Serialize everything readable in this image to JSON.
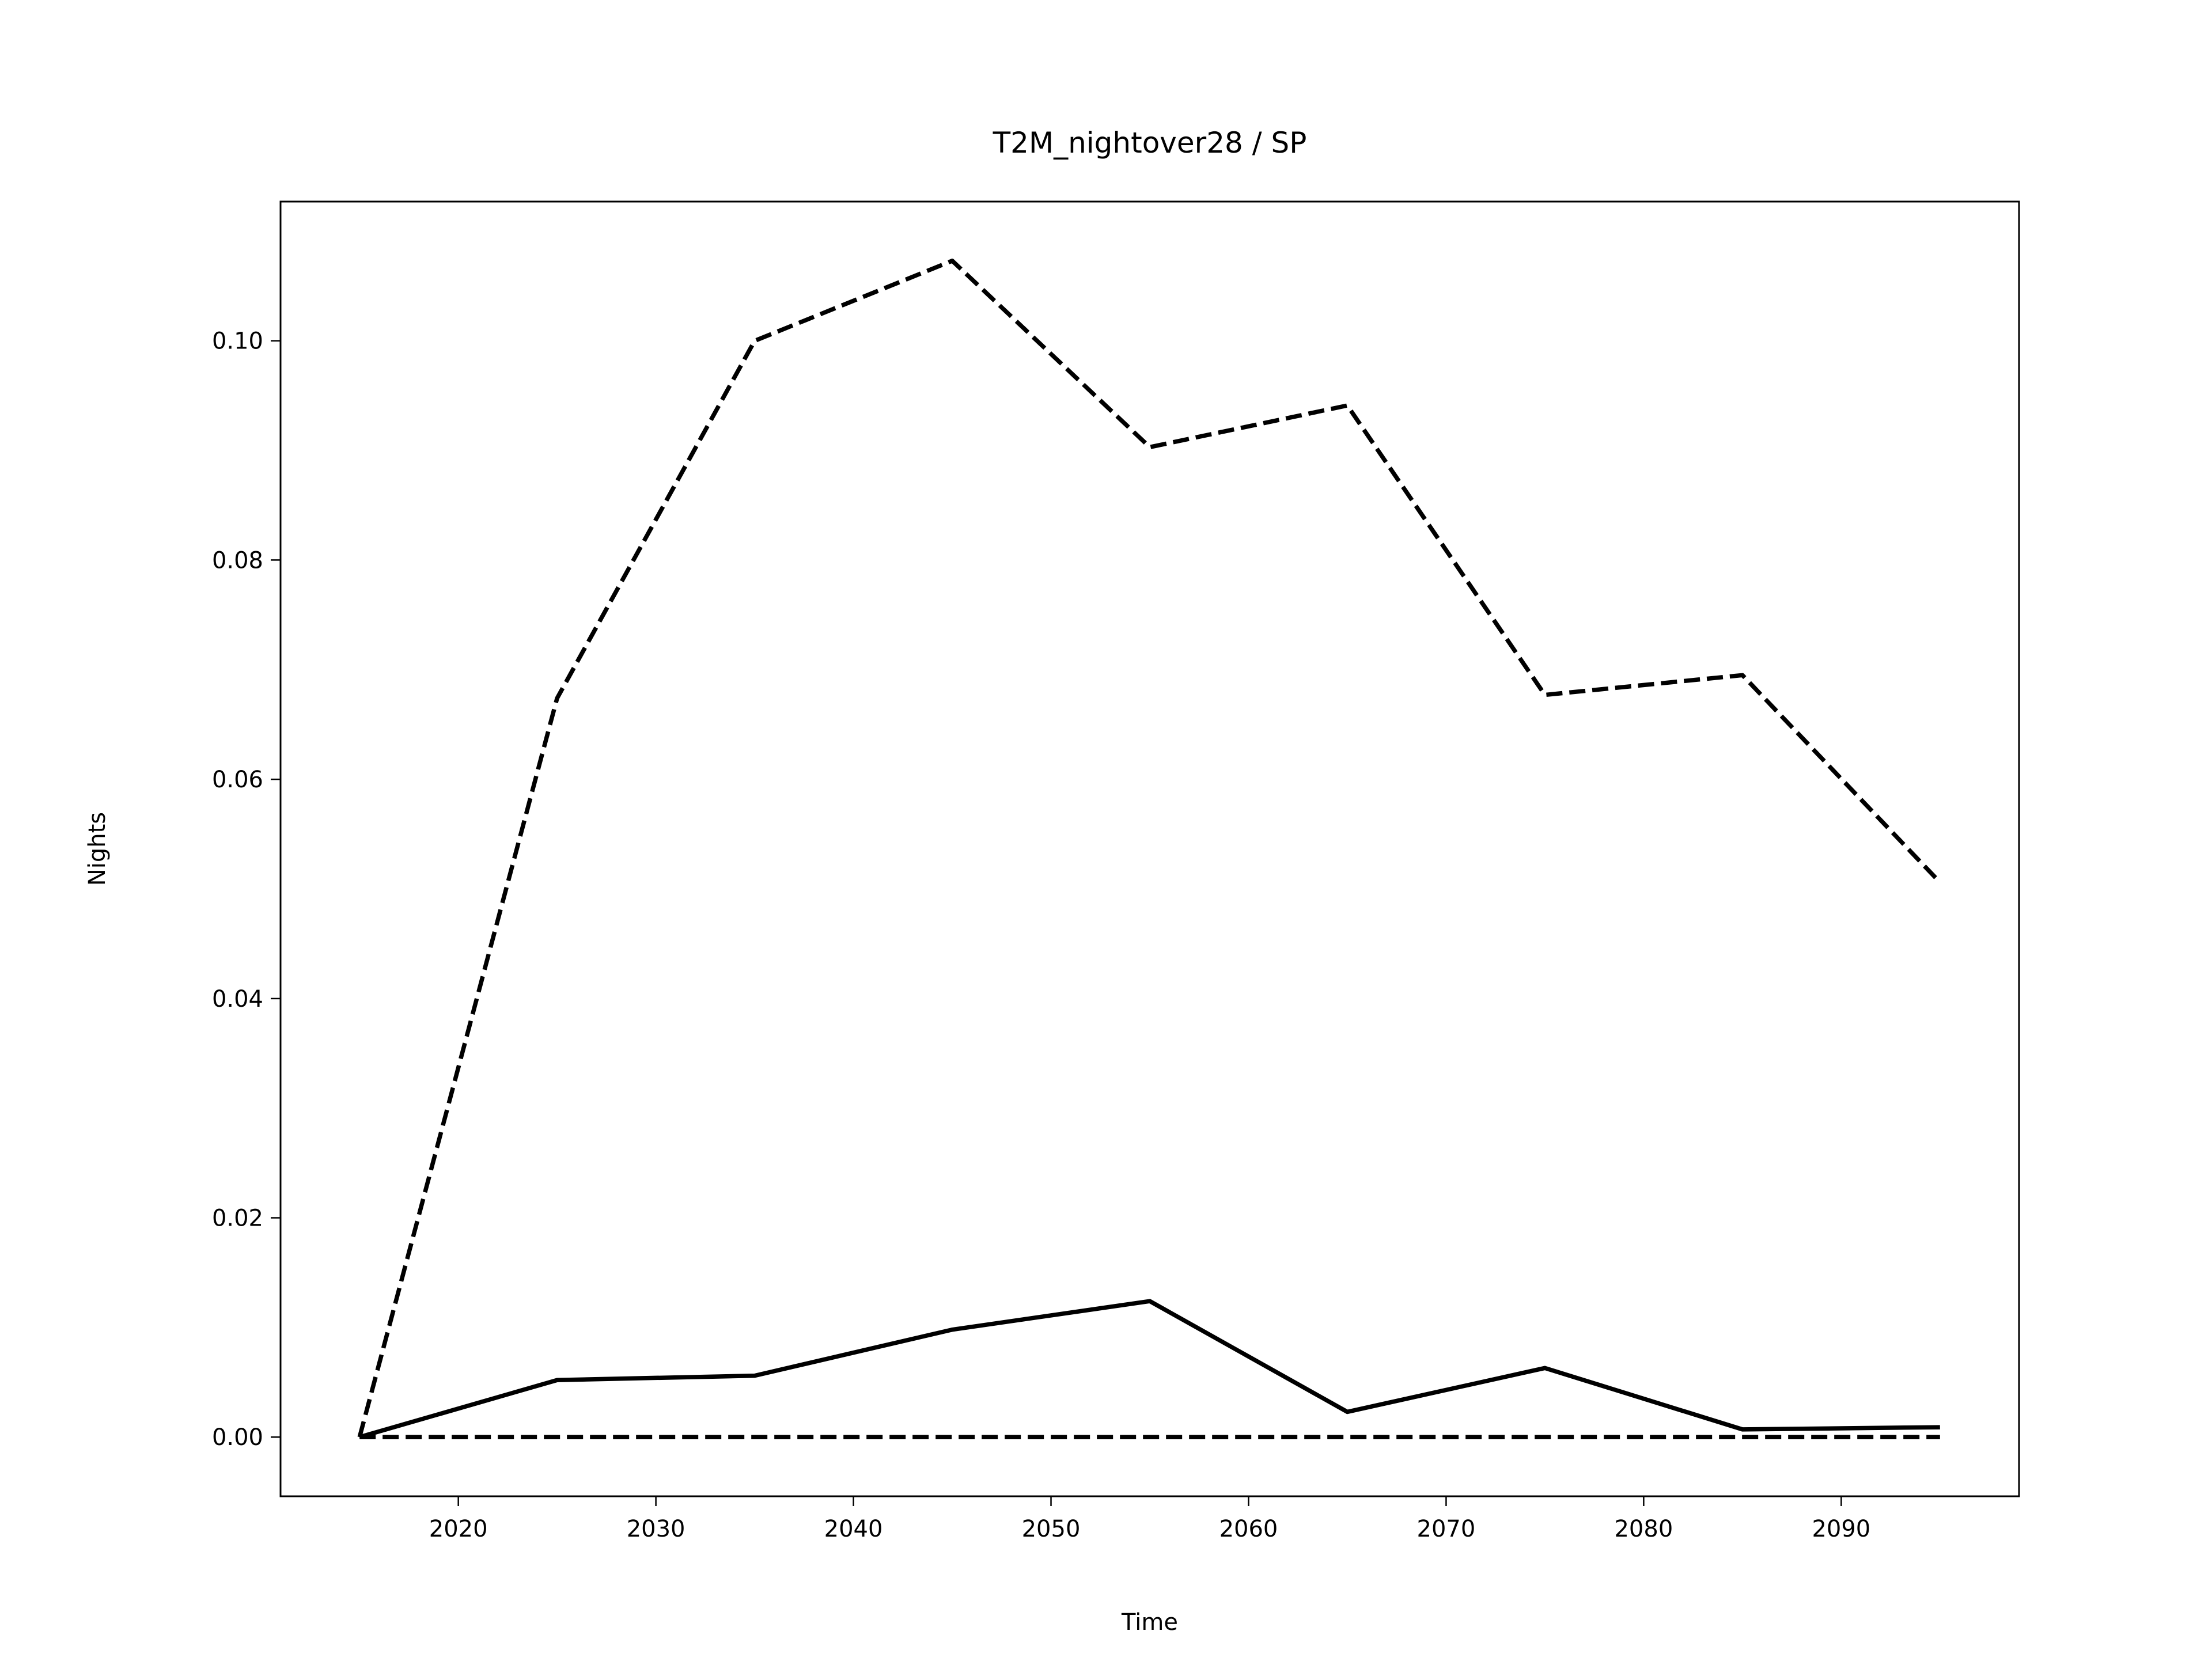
{
  "chart_data": {
    "type": "line",
    "title": "T2M_nightover28 / SP",
    "x_label": "Time",
    "y_label": "Nights",
    "x": [
      2015,
      2025,
      2035,
      2045,
      2055,
      2065,
      2075,
      2085,
      2095
    ],
    "series": [
      {
        "color": "#000000",
        "dashed": true,
        "values": [
          0,
          0.0674,
          0.1,
          0.1073,
          0.0903,
          0.0941,
          0.0677,
          0.0695,
          0.0506
        ]
      },
      {
        "color": "#000000",
        "dashed": false,
        "values": [
          0,
          0.0052,
          0.0056,
          0.0098,
          0.0124,
          0.0023,
          0.0063,
          0.0007,
          0.0009
        ]
      },
      {
        "color": "#000000",
        "dashed": true,
        "values": [
          0,
          0,
          0,
          0,
          0,
          0,
          0,
          0,
          0
        ]
      }
    ],
    "xlim": [
      2011,
      2099
    ],
    "ylim": [
      -0.0054,
      0.1127
    ],
    "xticks": [
      2020,
      2030,
      2040,
      2050,
      2060,
      2070,
      2080,
      2090
    ],
    "yticks": [
      {
        "value": 0,
        "label": "0.00"
      },
      {
        "value": 0.02,
        "label": "0.02"
      },
      {
        "value": 0.04,
        "label": "0.04"
      },
      {
        "value": 0.06,
        "label": "0.06"
      },
      {
        "value": 0.08,
        "label": "0.08"
      },
      {
        "value": 0.1,
        "label": "0.10"
      }
    ],
    "grid": false
  }
}
